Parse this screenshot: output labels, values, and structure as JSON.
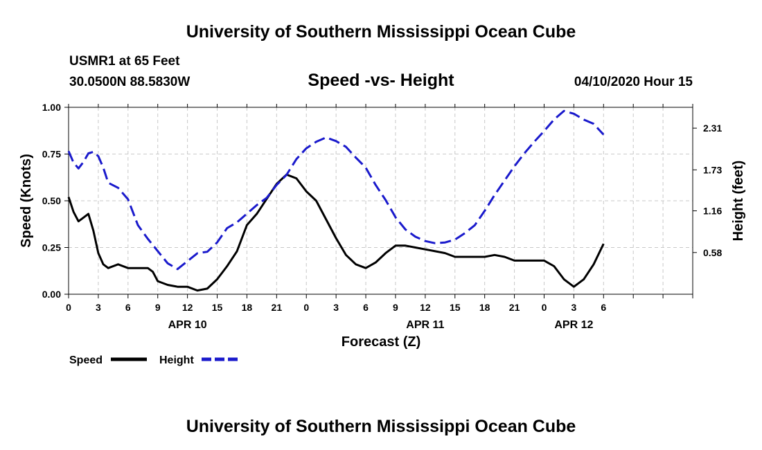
{
  "header": {
    "title": "University of Southern Mississippi Ocean Cube",
    "station": "USMR1 at 65 Feet",
    "coords": "30.0500N 88.5830W",
    "subtitle": "Speed -vs- Height",
    "timestamp": "04/10/2020 Hour 15"
  },
  "footer": {
    "title": "University of Southern Mississippi Ocean Cube"
  },
  "colors": {
    "speed": "#000000",
    "height": "#1a1acc",
    "grid": "#c8c8c8"
  },
  "chart_data": {
    "type": "line",
    "title": "Speed -vs- Height",
    "xlabel": "Forecast (Z)",
    "ylabel_left": "Speed (Knots)",
    "ylabel_right": "Height (feet)",
    "xlim": [
      0,
      63
    ],
    "ylim_left": [
      0,
      1.0
    ],
    "ylim_right": [
      0.0,
      2.6
    ],
    "x_ticks": [
      0,
      3,
      6,
      9,
      12,
      15,
      18,
      21,
      24,
      27,
      30,
      33,
      36,
      39,
      42,
      45,
      48,
      51,
      54,
      57,
      60,
      63
    ],
    "x_tick_labels": [
      "0",
      "3",
      "6",
      "9",
      "12",
      "15",
      "18",
      "21",
      "0",
      "3",
      "6",
      "9",
      "12",
      "15",
      "18",
      "21",
      "0",
      "3",
      "6"
    ],
    "x_tick_label_positions": [
      0,
      3,
      6,
      9,
      12,
      15,
      18,
      21,
      24,
      27,
      30,
      33,
      36,
      39,
      42,
      45,
      48,
      51,
      54
    ],
    "left_ticks": [
      0.0,
      0.25,
      0.5,
      0.75,
      1.0
    ],
    "left_tick_labels": [
      "0.00",
      "0.25",
      "0.50",
      "0.75",
      "1.00"
    ],
    "right_ticks": [
      0.58,
      1.16,
      1.73,
      2.31
    ],
    "right_tick_labels": [
      "0.58",
      "1.16",
      "1.73",
      "2.31"
    ],
    "date_labels": [
      {
        "label": "APR 10",
        "x": 12
      },
      {
        "label": "APR 11",
        "x": 36
      },
      {
        "label": "APR 12",
        "x": 51
      }
    ],
    "grid": true,
    "legend": [
      {
        "name": "Speed",
        "style": "solid"
      },
      {
        "name": "Height",
        "style": "dashed"
      }
    ],
    "series": [
      {
        "name": "Speed",
        "axis": "left",
        "style": "solid",
        "x": [
          0,
          0.5,
          1,
          1.5,
          2,
          2.5,
          3,
          3.5,
          4,
          5,
          6,
          7,
          8,
          8.5,
          9,
          10,
          11,
          12,
          13,
          14,
          15,
          16,
          17,
          18,
          19,
          20,
          21,
          22,
          23,
          24,
          25,
          26,
          27,
          28,
          29,
          30,
          31,
          32,
          33,
          34,
          35,
          36,
          37,
          38,
          39,
          40,
          41,
          42,
          43,
          44,
          45,
          46,
          47,
          48,
          49,
          50,
          51,
          52,
          53,
          54
        ],
        "y": [
          0.52,
          0.44,
          0.39,
          0.41,
          0.43,
          0.34,
          0.22,
          0.16,
          0.14,
          0.16,
          0.14,
          0.14,
          0.14,
          0.12,
          0.07,
          0.05,
          0.04,
          0.04,
          0.02,
          0.03,
          0.08,
          0.15,
          0.23,
          0.37,
          0.43,
          0.51,
          0.59,
          0.64,
          0.62,
          0.55,
          0.5,
          0.4,
          0.3,
          0.21,
          0.16,
          0.14,
          0.17,
          0.22,
          0.26,
          0.26,
          0.25,
          0.24,
          0.23,
          0.22,
          0.2,
          0.2,
          0.2,
          0.2,
          0.21,
          0.2,
          0.18,
          0.18,
          0.18,
          0.18,
          0.15,
          0.08,
          0.04,
          0.08,
          0.16,
          0.27
        ]
      },
      {
        "name": "Height",
        "axis": "right",
        "style": "dashed",
        "x": [
          0,
          0.5,
          1,
          1.5,
          2,
          2.5,
          3,
          3.5,
          4,
          5,
          6,
          7,
          8,
          9,
          10,
          11,
          12,
          13,
          14,
          15,
          16,
          17,
          18,
          19,
          20,
          21,
          22,
          23,
          24,
          25,
          26,
          27,
          28,
          29,
          30,
          31,
          32,
          33,
          34,
          35,
          36,
          37,
          38,
          39,
          40,
          41,
          42,
          43,
          44,
          45,
          46,
          47,
          48,
          49,
          50,
          51,
          52,
          53,
          54
        ],
        "y": [
          1.99,
          1.83,
          1.75,
          1.84,
          1.96,
          1.98,
          1.92,
          1.76,
          1.55,
          1.48,
          1.32,
          0.96,
          0.77,
          0.6,
          0.43,
          0.35,
          0.46,
          0.57,
          0.59,
          0.72,
          0.92,
          1.0,
          1.12,
          1.24,
          1.34,
          1.52,
          1.66,
          1.88,
          2.03,
          2.12,
          2.18,
          2.13,
          2.05,
          1.9,
          1.76,
          1.52,
          1.31,
          1.07,
          0.9,
          0.8,
          0.74,
          0.71,
          0.72,
          0.76,
          0.85,
          0.96,
          1.16,
          1.38,
          1.58,
          1.78,
          1.96,
          2.12,
          2.27,
          2.43,
          2.55,
          2.51,
          2.43,
          2.37,
          2.22
        ]
      }
    ]
  }
}
